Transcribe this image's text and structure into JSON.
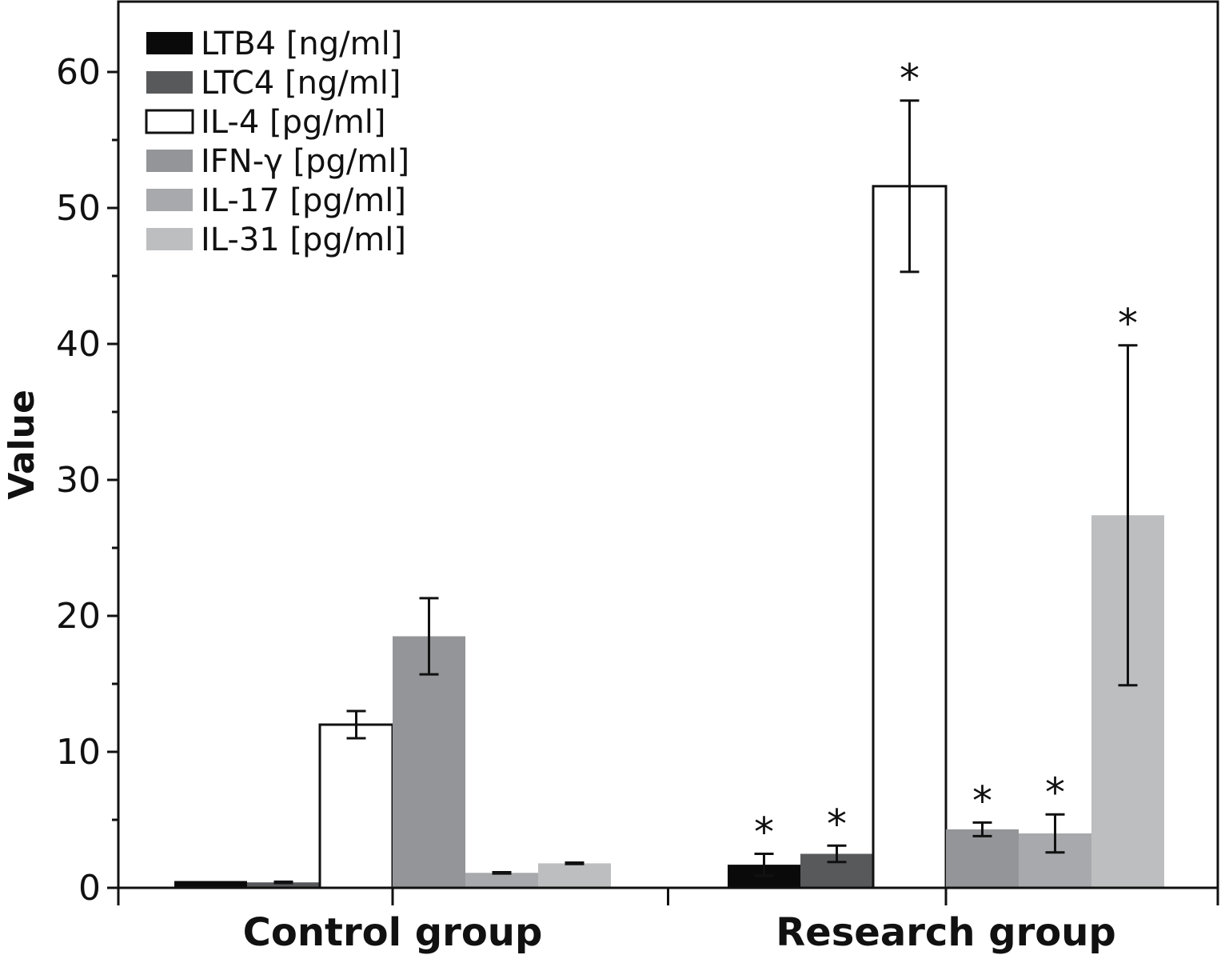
{
  "chart_data": {
    "type": "bar",
    "title": "",
    "xlabel": "",
    "ylabel": "Value",
    "ylim": [
      0,
      65
    ],
    "yticks": [
      0,
      10,
      20,
      30,
      40,
      50,
      60
    ],
    "ytick_labels": [
      "0",
      "10",
      "20",
      "30",
      "40",
      "50",
      "60"
    ],
    "grid": false,
    "legend_position": "top-left",
    "categories": [
      "Control group",
      "Research group"
    ],
    "series": [
      {
        "name": "LTB4 [ng/ml]",
        "color": "#0a0a0a",
        "values": [
          0.5,
          1.7
        ],
        "errors": [
          0,
          0.8
        ],
        "significant": [
          false,
          true
        ]
      },
      {
        "name": "LTC4 [ng/ml]",
        "color": "#58595b",
        "values": [
          0.4,
          2.5
        ],
        "errors": [
          0.05,
          0.6
        ],
        "significant": [
          false,
          true
        ]
      },
      {
        "name": "IL-4 [pg/ml]",
        "color": "#ffffff",
        "values": [
          12.0,
          51.6
        ],
        "errors": [
          1.0,
          6.3
        ],
        "significant": [
          false,
          true
        ]
      },
      {
        "name": "IFN-γ [pg/ml]",
        "color": "#939598",
        "values": [
          18.5,
          4.3
        ],
        "errors": [
          2.8,
          0.5
        ],
        "significant": [
          false,
          true
        ]
      },
      {
        "name": "IL-17 [pg/ml]",
        "color": "#a7a9ac",
        "values": [
          1.1,
          4.0
        ],
        "errors": [
          0.05,
          1.4
        ],
        "significant": [
          false,
          true
        ]
      },
      {
        "name": "IL-31 [pg/ml]",
        "color": "#bcbec0",
        "values": [
          1.8,
          27.4
        ],
        "errors": [
          0.05,
          12.5
        ],
        "significant": [
          false,
          true
        ]
      }
    ],
    "significance_marker": "*"
  }
}
